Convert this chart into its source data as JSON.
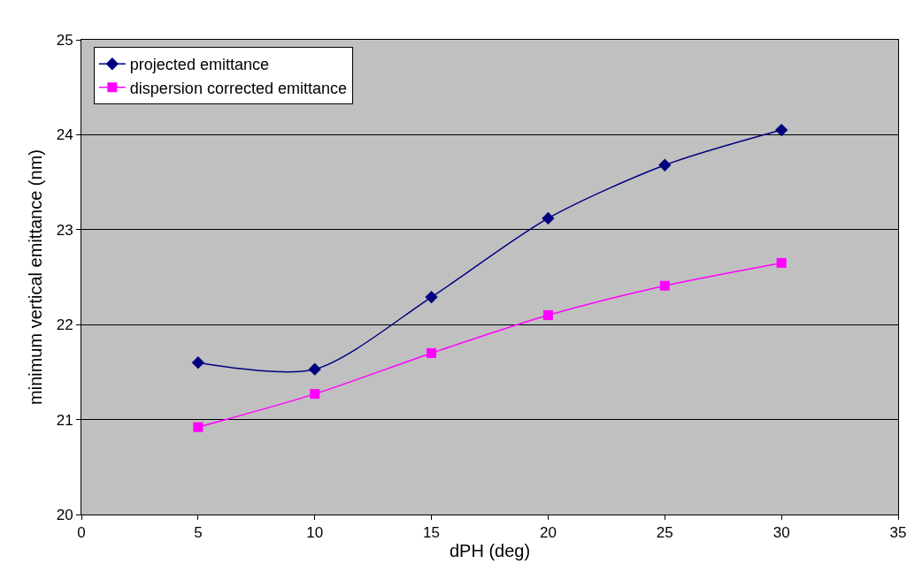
{
  "chart_data": {
    "type": "line",
    "xlabel": "dPH (deg)",
    "ylabel": "minimum vertical emittance (nm)",
    "x": [
      5,
      10,
      15,
      20,
      25,
      30
    ],
    "series": [
      {
        "name": "projected emittance",
        "color": "#000080",
        "marker": "diamond",
        "values": [
          21.6,
          21.53,
          22.29,
          23.12,
          23.68,
          24.05
        ]
      },
      {
        "name": "dispersion corrected emittance",
        "color": "#ff00ff",
        "marker": "square",
        "values": [
          20.92,
          21.27,
          21.7,
          22.1,
          22.41,
          22.65
        ]
      }
    ],
    "xlim": [
      0,
      35
    ],
    "xticks": [
      0,
      5,
      10,
      15,
      20,
      25,
      30,
      35
    ],
    "ylim": [
      20,
      25
    ],
    "yticks": [
      20,
      21,
      22,
      23,
      24,
      25
    ],
    "grid": "y",
    "legend": "top left",
    "line_style": "solid"
  }
}
